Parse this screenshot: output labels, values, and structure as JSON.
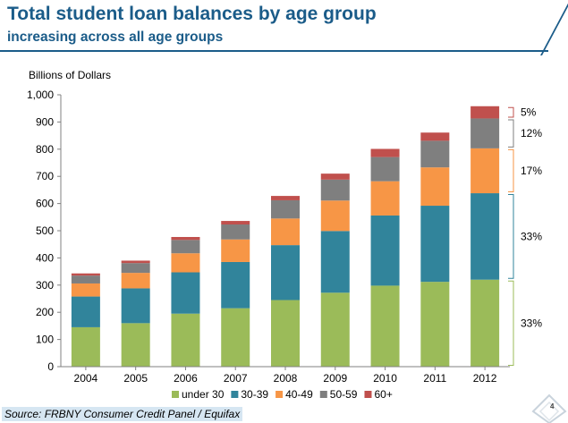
{
  "header": {
    "title": "Total student loan balances by age group",
    "subtitle": "increasing across all age groups"
  },
  "footer": {
    "source": "Source: FRBNY Consumer Credit Panel / Equifax",
    "page_number": "4"
  },
  "chart_data": {
    "type": "bar",
    "stacked": true,
    "title": "Total student loan balances by age group",
    "subtitle": "increasing across all age groups",
    "ylabel": "Billions of Dollars",
    "xlabel": "",
    "ylim": [
      0,
      1000
    ],
    "yticks": [
      0,
      100,
      200,
      300,
      400,
      500,
      600,
      700,
      800,
      900,
      1000
    ],
    "ytick_labels": [
      "0",
      "100",
      "200",
      "300",
      "400",
      "500",
      "600",
      "700",
      "800",
      "900",
      "1,000"
    ],
    "grid": false,
    "legend_position": "bottom",
    "categories": [
      "2004",
      "2005",
      "2006",
      "2007",
      "2008",
      "2009",
      "2010",
      "2011",
      "2012"
    ],
    "series": [
      {
        "name": "under 30",
        "color": "#9bbb59",
        "values": [
          145,
          160,
          195,
          215,
          245,
          272,
          298,
          312,
          320
        ]
      },
      {
        "name": "30-39",
        "color": "#31849b",
        "values": [
          113,
          128,
          152,
          170,
          202,
          227,
          258,
          280,
          318
        ]
      },
      {
        "name": "40-49",
        "color": "#f79646",
        "values": [
          48,
          57,
          70,
          83,
          98,
          112,
          126,
          141,
          165
        ]
      },
      {
        "name": "50-59",
        "color": "#7f7f7f",
        "values": [
          29,
          36,
          49,
          55,
          67,
          77,
          89,
          98,
          110
        ]
      },
      {
        "name": "60+",
        "color": "#c0504d",
        "values": [
          8,
          9,
          11,
          13,
          16,
          22,
          30,
          30,
          45
        ]
      }
    ],
    "annotations": [
      {
        "label": "5%",
        "series": "60+"
      },
      {
        "label": "12%",
        "series": "50-59"
      },
      {
        "label": "17%",
        "series": "40-49"
      },
      {
        "label": "33%",
        "series": "30-39"
      },
      {
        "label": "33%",
        "series": "under 30"
      }
    ]
  }
}
